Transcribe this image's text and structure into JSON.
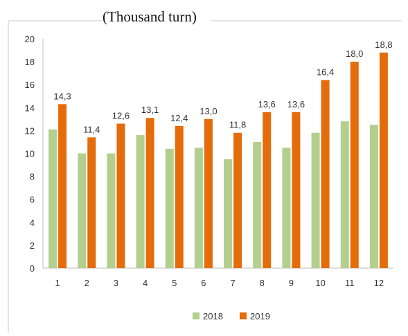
{
  "chart_data": {
    "type": "bar",
    "title": "(Thousand turn)",
    "xlabel": "",
    "ylabel": "",
    "categories": [
      "1",
      "2",
      "3",
      "4",
      "5",
      "6",
      "7",
      "8",
      "9",
      "10",
      "11",
      "12"
    ],
    "series": [
      {
        "name": "2018",
        "color": "#b3cf8e",
        "values": [
          12.1,
          10.0,
          10.0,
          11.6,
          10.4,
          10.5,
          9.5,
          11.0,
          10.5,
          11.8,
          12.8,
          12.5
        ]
      },
      {
        "name": "2019",
        "color": "#e46c0a",
        "values": [
          14.3,
          11.4,
          12.6,
          13.1,
          12.4,
          13.0,
          11.8,
          13.6,
          13.6,
          16.4,
          18.0,
          18.8
        ]
      }
    ],
    "data_labels": [
      "14,3",
      "11,4",
      "12,6",
      "13,1",
      "12,4",
      "13,0",
      "11,8",
      "13,6",
      "13,6",
      "16,4",
      "18,0",
      "18,8"
    ],
    "yticks": [
      "0",
      "2",
      "4",
      "6",
      "8",
      "10",
      "12",
      "14",
      "16",
      "18",
      "20"
    ],
    "ylim": [
      0,
      20
    ],
    "grid": false,
    "legend_position": "bottom"
  }
}
